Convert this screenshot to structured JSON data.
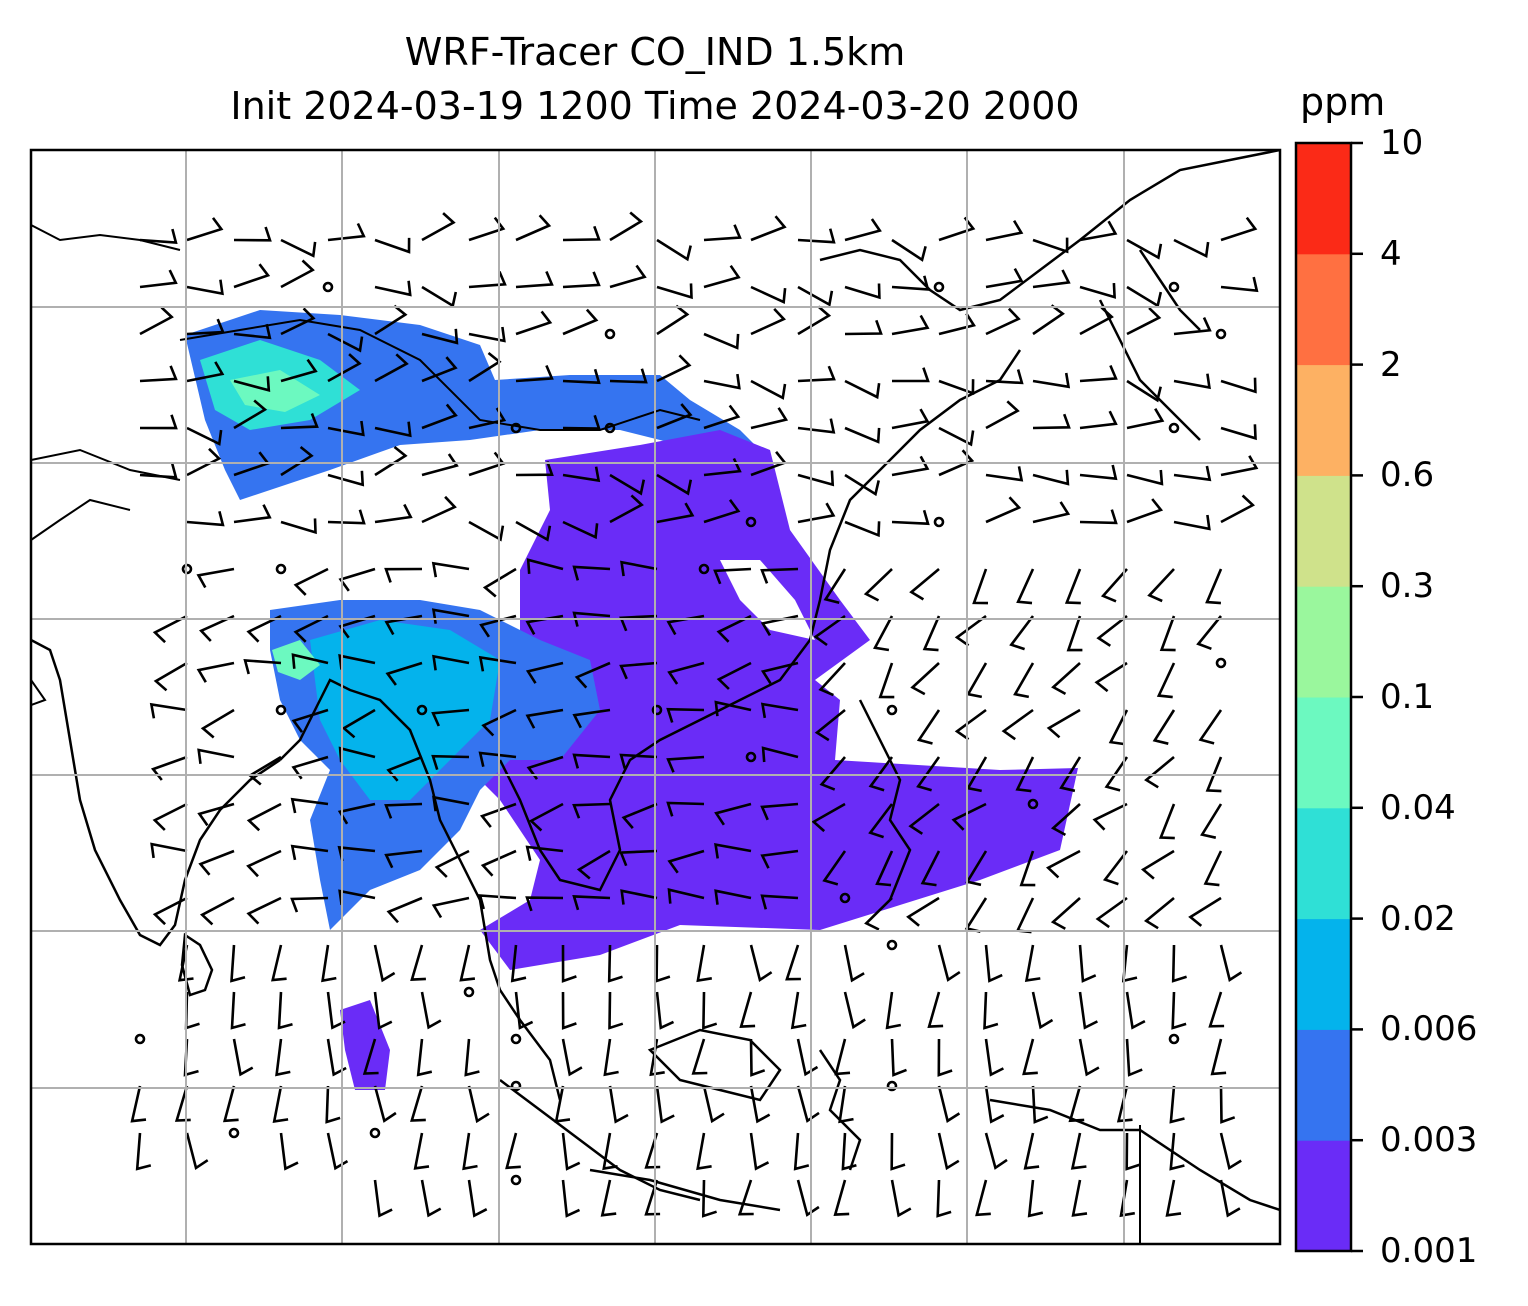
{
  "title_line1": "WRF-Tracer CO_IND 1.5km",
  "title_line2": "Init 2024-03-19 1200 Time 2024-03-20 2000",
  "colorbar": {
    "unit": "ppm",
    "levels": [
      "0.001",
      "0.003",
      "0.006",
      "0.02",
      "0.04",
      "0.1",
      "0.3",
      "0.6",
      "2",
      "4",
      "10"
    ],
    "colors": [
      "#6a2cf7",
      "#3574f0",
      "#04b3ec",
      "#2fe0d6",
      "#6cf9c0",
      "#9af79d",
      "#cfe28b",
      "#fdb163",
      "#ff7041",
      "#fb2a17"
    ]
  },
  "map": {
    "gridlines": true,
    "features": [
      "coastlines",
      "country-borders",
      "wind-barbs",
      "tracer-concentration-field"
    ]
  }
}
